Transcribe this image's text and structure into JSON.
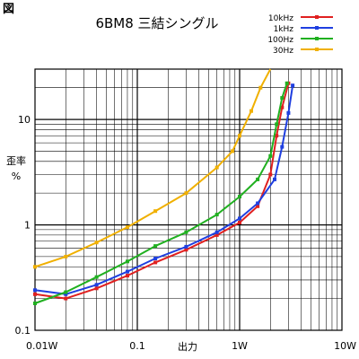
{
  "figure_label": "図",
  "chart_data": {
    "type": "line",
    "title": "6BM8 三結シングル",
    "xlabel": "出力",
    "ylabel_lines": [
      "歪率",
      "%"
    ],
    "x_scale": "log",
    "y_scale": "log",
    "xlim": [
      0.01,
      10
    ],
    "ylim": [
      0.1,
      30
    ],
    "grid": true,
    "legend_position": "top-right",
    "x_ticks": [
      {
        "value": 0.01,
        "label": "0.01W"
      },
      {
        "value": 0.1,
        "label": "0.1"
      },
      {
        "value": 1,
        "label": "1W"
      },
      {
        "value": 10,
        "label": "10W"
      }
    ],
    "y_ticks": [
      {
        "value": 0.1,
        "label": "0.1"
      },
      {
        "value": 1,
        "label": "1"
      },
      {
        "value": 10,
        "label": "10"
      }
    ],
    "series": [
      {
        "name": "10kHz",
        "color": "#e02020",
        "x": [
          0.01,
          0.02,
          0.04,
          0.08,
          0.15,
          0.3,
          0.6,
          1.0,
          1.5,
          2.0,
          2.3,
          2.6,
          3.0
        ],
        "y": [
          0.22,
          0.2,
          0.25,
          0.33,
          0.44,
          0.58,
          0.8,
          1.05,
          1.5,
          3.0,
          7.0,
          13.0,
          22.0
        ]
      },
      {
        "name": "1kHz",
        "color": "#1f3fe0",
        "x": [
          0.01,
          0.02,
          0.04,
          0.08,
          0.15,
          0.3,
          0.6,
          1.0,
          1.5,
          2.2,
          2.6,
          3.0,
          3.3
        ],
        "y": [
          0.24,
          0.22,
          0.27,
          0.36,
          0.48,
          0.62,
          0.85,
          1.15,
          1.6,
          2.7,
          5.5,
          11.5,
          21.0
        ]
      },
      {
        "name": "100Hz",
        "color": "#20b020",
        "x": [
          0.01,
          0.02,
          0.04,
          0.08,
          0.15,
          0.3,
          0.6,
          1.0,
          1.5,
          2.0,
          2.3,
          2.6,
          2.9
        ],
        "y": [
          0.18,
          0.23,
          0.32,
          0.45,
          0.63,
          0.85,
          1.25,
          1.85,
          2.7,
          4.5,
          9.0,
          16.0,
          22.0
        ]
      },
      {
        "name": "30Hz",
        "color": "#f0b000",
        "x": [
          0.01,
          0.02,
          0.04,
          0.08,
          0.15,
          0.3,
          0.6,
          0.85,
          1.0,
          1.3,
          1.6,
          2.0
        ],
        "y": [
          0.4,
          0.5,
          0.68,
          0.95,
          1.35,
          2.0,
          3.5,
          5.0,
          7.0,
          12.0,
          20.0,
          30.0
        ]
      }
    ]
  }
}
